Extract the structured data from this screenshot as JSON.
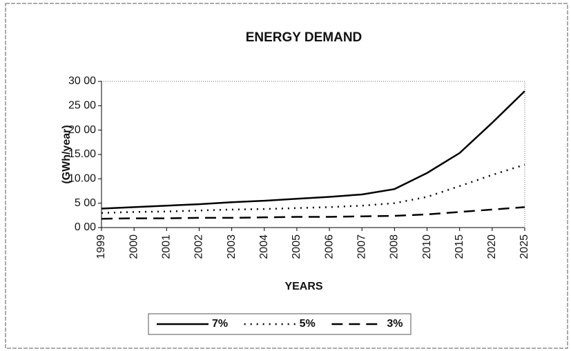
{
  "chart_data": {
    "type": "line",
    "title": "ENERGY DEMAND",
    "y_label": "(GWh/year)",
    "x_label": "YEARS",
    "categories": [
      "1999",
      "2000",
      "2001",
      "2002",
      "2003",
      "2004",
      "2005",
      "2006",
      "2007",
      "2008",
      "2010",
      "2015",
      "2020",
      "2025"
    ],
    "series": [
      {
        "name": "7%",
        "color": "#000000",
        "dash": "solid",
        "values": [
          3.9,
          4.2,
          4.5,
          4.8,
          5.2,
          5.5,
          5.9,
          6.3,
          6.8,
          7.9,
          11.2,
          15.3,
          21.5,
          28.0
        ]
      },
      {
        "name": "5%",
        "color": "#000000",
        "dash": "dotted",
        "values": [
          3.0,
          3.2,
          3.3,
          3.5,
          3.7,
          3.8,
          4.0,
          4.2,
          4.5,
          5.0,
          6.3,
          8.5,
          10.8,
          12.9
        ]
      },
      {
        "name": "3%",
        "color": "#000000",
        "dash": "dashed",
        "values": [
          1.8,
          1.9,
          1.9,
          2.0,
          2.0,
          2.1,
          2.2,
          2.2,
          2.3,
          2.4,
          2.7,
          3.2,
          3.7,
          4.2
        ]
      }
    ],
    "ylim": [
      0,
      30
    ],
    "yticks": [
      {
        "value": 0,
        "label": "0 00"
      },
      {
        "value": 5,
        "label": "5 00"
      },
      {
        "value": 10,
        "label": "10.00"
      },
      {
        "value": 15,
        "label": "15.00"
      },
      {
        "value": 20,
        "label": "20 00"
      },
      {
        "value": 25,
        "label": "25 00"
      },
      {
        "value": 30,
        "label": "30 00"
      }
    ],
    "legend": "bottom"
  }
}
